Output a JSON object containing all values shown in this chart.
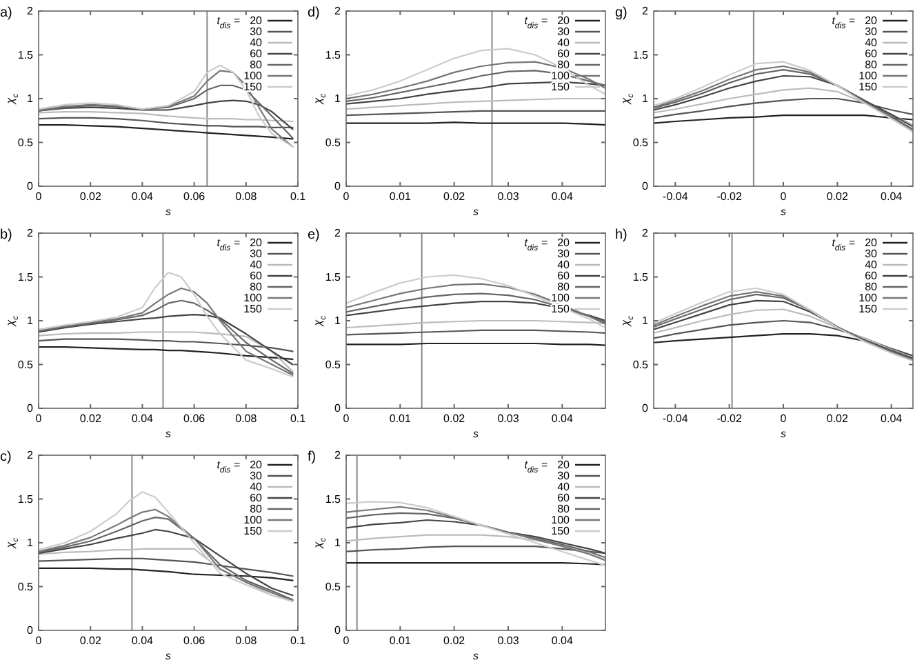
{
  "chart_data": [
    {
      "type": "line",
      "title": "a)",
      "xlabel": "s",
      "ylabel": "χ$_{c}$",
      "legend_title": "t$_{dis}$ =",
      "legend": "top right",
      "xlim": [
        0,
        0.1
      ],
      "xticks": [
        0,
        0.02,
        0.04,
        0.06,
        0.08,
        0.1
      ],
      "ylim": [
        0,
        2
      ],
      "yticks": [
        0,
        0.5,
        1,
        1.5,
        2
      ],
      "ref_lines": [
        {
          "axis": "x",
          "value": 0.065,
          "color": "#888888"
        }
      ],
      "x": [
        0,
        0.01,
        0.02,
        0.03,
        0.04,
        0.05,
        0.06,
        0.065,
        0.07,
        0.075,
        0.08,
        0.085,
        0.09,
        0.098
      ],
      "series": [
        {
          "name": "20",
          "color": "#222222",
          "values": [
            0.7,
            0.7,
            0.69,
            0.68,
            0.66,
            0.64,
            0.62,
            0.61,
            0.6,
            0.59,
            0.58,
            0.57,
            0.56,
            0.54
          ]
        },
        {
          "name": "30",
          "color": "#555555",
          "values": [
            0.77,
            0.78,
            0.78,
            0.77,
            0.75,
            0.72,
            0.7,
            0.69,
            0.69,
            0.68,
            0.68,
            0.68,
            0.67,
            0.67
          ]
        },
        {
          "name": "40",
          "color": "#bbbbbb",
          "values": [
            0.84,
            0.85,
            0.85,
            0.84,
            0.83,
            0.8,
            0.78,
            0.77,
            0.77,
            0.77,
            0.76,
            0.76,
            0.75,
            0.74
          ]
        },
        {
          "name": "60",
          "color": "#444444",
          "values": [
            0.86,
            0.89,
            0.9,
            0.89,
            0.87,
            0.87,
            0.92,
            0.95,
            0.97,
            0.98,
            0.97,
            0.93,
            0.85,
            0.65
          ]
        },
        {
          "name": "80",
          "color": "#666666",
          "values": [
            0.86,
            0.9,
            0.92,
            0.91,
            0.88,
            0.9,
            1.0,
            1.1,
            1.15,
            1.15,
            1.1,
            0.95,
            0.8,
            0.55
          ]
        },
        {
          "name": "100",
          "color": "#777777",
          "values": [
            0.87,
            0.91,
            0.93,
            0.92,
            0.88,
            0.91,
            1.03,
            1.2,
            1.32,
            1.3,
            1.15,
            0.9,
            0.65,
            0.45
          ]
        },
        {
          "name": "150",
          "color": "#cccccc",
          "values": [
            0.88,
            0.93,
            0.95,
            0.93,
            0.88,
            0.92,
            1.08,
            1.3,
            1.38,
            1.3,
            1.1,
            0.8,
            0.6,
            0.45
          ]
        }
      ]
    },
    {
      "type": "line",
      "title": "b)",
      "xlabel": "s",
      "ylabel": "χ$_{c}$",
      "legend_title": "t$_{dis}$ =",
      "legend": "top right",
      "xlim": [
        0,
        0.1
      ],
      "xticks": [
        0,
        0.02,
        0.04,
        0.06,
        0.08,
        0.1
      ],
      "ylim": [
        0,
        2
      ],
      "yticks": [
        0,
        0.5,
        1,
        1.5,
        2
      ],
      "ref_lines": [
        {
          "axis": "x",
          "value": 0.048,
          "color": "#888888"
        }
      ],
      "x": [
        0,
        0.01,
        0.02,
        0.03,
        0.04,
        0.045,
        0.05,
        0.055,
        0.06,
        0.065,
        0.07,
        0.08,
        0.09,
        0.098
      ],
      "series": [
        {
          "name": "20",
          "color": "#222222",
          "values": [
            0.7,
            0.7,
            0.69,
            0.68,
            0.67,
            0.67,
            0.66,
            0.66,
            0.65,
            0.64,
            0.63,
            0.6,
            0.58,
            0.56
          ]
        },
        {
          "name": "30",
          "color": "#555555",
          "values": [
            0.77,
            0.79,
            0.79,
            0.79,
            0.78,
            0.77,
            0.77,
            0.76,
            0.76,
            0.75,
            0.74,
            0.72,
            0.69,
            0.65
          ]
        },
        {
          "name": "40",
          "color": "#bbbbbb",
          "values": [
            0.83,
            0.85,
            0.86,
            0.86,
            0.87,
            0.87,
            0.87,
            0.87,
            0.87,
            0.86,
            0.85,
            0.82,
            0.65,
            0.42
          ]
        },
        {
          "name": "60",
          "color": "#444444",
          "values": [
            0.87,
            0.92,
            0.96,
            0.99,
            1.02,
            1.03,
            1.05,
            1.06,
            1.07,
            1.06,
            1.03,
            0.85,
            0.65,
            0.5
          ]
        },
        {
          "name": "80",
          "color": "#666666",
          "values": [
            0.88,
            0.93,
            0.97,
            1.01,
            1.06,
            1.12,
            1.2,
            1.23,
            1.2,
            1.12,
            1.02,
            0.75,
            0.55,
            0.4
          ]
        },
        {
          "name": "100",
          "color": "#777777",
          "values": [
            0.89,
            0.94,
            0.98,
            1.02,
            1.09,
            1.2,
            1.3,
            1.37,
            1.33,
            1.2,
            1.0,
            0.65,
            0.5,
            0.38
          ]
        },
        {
          "name": "150",
          "color": "#cccccc",
          "values": [
            0.9,
            0.95,
            0.99,
            1.04,
            1.15,
            1.38,
            1.55,
            1.5,
            1.3,
            1.05,
            0.85,
            0.55,
            0.45,
            0.36
          ]
        }
      ]
    },
    {
      "type": "line",
      "title": "c)",
      "xlabel": "s",
      "ylabel": "χ$_{c}$",
      "legend_title": "t$_{dis}$ =",
      "legend": "top right",
      "xlim": [
        0,
        0.1
      ],
      "xticks": [
        0,
        0.02,
        0.04,
        0.06,
        0.08,
        0.1
      ],
      "ylim": [
        0,
        2
      ],
      "yticks": [
        0,
        0.5,
        1,
        1.5,
        2
      ],
      "ref_lines": [
        {
          "axis": "x",
          "value": 0.036,
          "color": "#888888"
        }
      ],
      "x": [
        0,
        0.01,
        0.02,
        0.03,
        0.035,
        0.04,
        0.045,
        0.05,
        0.06,
        0.07,
        0.08,
        0.09,
        0.098
      ],
      "series": [
        {
          "name": "20",
          "color": "#222222",
          "values": [
            0.71,
            0.71,
            0.71,
            0.7,
            0.7,
            0.69,
            0.68,
            0.67,
            0.64,
            0.63,
            0.62,
            0.6,
            0.57
          ]
        },
        {
          "name": "30",
          "color": "#555555",
          "values": [
            0.79,
            0.8,
            0.81,
            0.82,
            0.82,
            0.82,
            0.81,
            0.8,
            0.78,
            0.74,
            0.7,
            0.66,
            0.62
          ]
        },
        {
          "name": "40",
          "color": "#bbbbbb",
          "values": [
            0.87,
            0.89,
            0.9,
            0.92,
            0.92,
            0.93,
            0.93,
            0.93,
            0.93,
            0.7,
            0.55,
            0.4,
            0.34
          ]
        },
        {
          "name": "60",
          "color": "#444444",
          "values": [
            0.88,
            0.93,
            0.98,
            1.05,
            1.08,
            1.11,
            1.15,
            1.13,
            1.05,
            0.85,
            0.65,
            0.48,
            0.4
          ]
        },
        {
          "name": "80",
          "color": "#666666",
          "values": [
            0.89,
            0.95,
            1.02,
            1.13,
            1.19,
            1.25,
            1.29,
            1.27,
            1.05,
            0.75,
            0.57,
            0.45,
            0.35
          ]
        },
        {
          "name": "100",
          "color": "#777777",
          "values": [
            0.9,
            0.97,
            1.06,
            1.2,
            1.28,
            1.35,
            1.38,
            1.3,
            1.05,
            0.7,
            0.55,
            0.43,
            0.34
          ]
        },
        {
          "name": "150",
          "color": "#cccccc",
          "values": [
            0.92,
            1.0,
            1.13,
            1.33,
            1.48,
            1.58,
            1.52,
            1.35,
            1.0,
            0.65,
            0.52,
            0.4,
            0.33
          ]
        }
      ]
    },
    {
      "type": "line",
      "title": "d)",
      "xlabel": "s",
      "ylabel": "χ$_{c}$",
      "legend_title": "t$_{dis}$ =",
      "legend": "top right",
      "xlim": [
        0,
        0.048
      ],
      "xticks": [
        0,
        0.01,
        0.02,
        0.03,
        0.04
      ],
      "ylim": [
        0,
        2
      ],
      "yticks": [
        0,
        0.5,
        1,
        1.5,
        2
      ],
      "ref_lines": [
        {
          "axis": "x",
          "value": 0.027,
          "color": "#888888"
        }
      ],
      "x": [
        0,
        0.005,
        0.01,
        0.015,
        0.02,
        0.025,
        0.03,
        0.035,
        0.04,
        0.045,
        0.048
      ],
      "series": [
        {
          "name": "20",
          "color": "#222222",
          "values": [
            0.72,
            0.72,
            0.72,
            0.72,
            0.73,
            0.72,
            0.72,
            0.72,
            0.72,
            0.71,
            0.7
          ]
        },
        {
          "name": "30",
          "color": "#555555",
          "values": [
            0.81,
            0.82,
            0.83,
            0.84,
            0.85,
            0.86,
            0.86,
            0.86,
            0.86,
            0.86,
            0.86
          ]
        },
        {
          "name": "40",
          "color": "#bbbbbb",
          "values": [
            0.88,
            0.9,
            0.92,
            0.94,
            0.96,
            0.97,
            0.98,
            0.99,
            1.0,
            1.0,
            1.0
          ]
        },
        {
          "name": "60",
          "color": "#444444",
          "values": [
            0.94,
            0.97,
            1.0,
            1.05,
            1.09,
            1.12,
            1.17,
            1.18,
            1.19,
            1.17,
            1.15
          ]
        },
        {
          "name": "80",
          "color": "#666666",
          "values": [
            0.97,
            1.01,
            1.07,
            1.13,
            1.19,
            1.26,
            1.31,
            1.32,
            1.28,
            1.2,
            1.15
          ]
        },
        {
          "name": "100",
          "color": "#777777",
          "values": [
            1.0,
            1.05,
            1.12,
            1.2,
            1.3,
            1.37,
            1.41,
            1.42,
            1.35,
            1.22,
            1.12
          ]
        },
        {
          "name": "150",
          "color": "#cccccc",
          "values": [
            1.03,
            1.1,
            1.2,
            1.33,
            1.46,
            1.55,
            1.57,
            1.5,
            1.35,
            1.15,
            1.05
          ]
        }
      ]
    },
    {
      "type": "line",
      "title": "e)",
      "xlabel": "s",
      "ylabel": "χ$_{c}$",
      "legend_title": "t$_{dis}$ =",
      "legend": "top right",
      "xlim": [
        0,
        0.048
      ],
      "xticks": [
        0,
        0.01,
        0.02,
        0.03,
        0.04
      ],
      "ylim": [
        0,
        2
      ],
      "yticks": [
        0,
        0.5,
        1,
        1.5,
        2
      ],
      "ref_lines": [
        {
          "axis": "x",
          "value": 0.014,
          "color": "#888888"
        }
      ],
      "x": [
        0,
        0.005,
        0.01,
        0.015,
        0.02,
        0.025,
        0.03,
        0.035,
        0.04,
        0.045,
        0.048
      ],
      "series": [
        {
          "name": "20",
          "color": "#222222",
          "values": [
            0.73,
            0.73,
            0.73,
            0.74,
            0.74,
            0.74,
            0.74,
            0.74,
            0.73,
            0.73,
            0.72
          ]
        },
        {
          "name": "30",
          "color": "#555555",
          "values": [
            0.84,
            0.85,
            0.86,
            0.87,
            0.88,
            0.89,
            0.89,
            0.89,
            0.88,
            0.87,
            0.86
          ]
        },
        {
          "name": "40",
          "color": "#bbbbbb",
          "values": [
            0.92,
            0.94,
            0.96,
            0.98,
            0.99,
            1.0,
            1.0,
            1.0,
            0.99,
            0.98,
            0.97
          ]
        },
        {
          "name": "60",
          "color": "#444444",
          "values": [
            1.06,
            1.1,
            1.14,
            1.17,
            1.2,
            1.22,
            1.22,
            1.2,
            1.14,
            1.06,
            1.0
          ]
        },
        {
          "name": "80",
          "color": "#666666",
          "values": [
            1.1,
            1.16,
            1.22,
            1.27,
            1.3,
            1.31,
            1.29,
            1.24,
            1.15,
            1.05,
            0.98
          ]
        },
        {
          "name": "100",
          "color": "#777777",
          "values": [
            1.15,
            1.23,
            1.31,
            1.37,
            1.41,
            1.42,
            1.38,
            1.3,
            1.18,
            1.05,
            0.96
          ]
        },
        {
          "name": "150",
          "color": "#cccccc",
          "values": [
            1.2,
            1.32,
            1.43,
            1.5,
            1.52,
            1.48,
            1.4,
            1.28,
            1.15,
            1.02,
            0.92
          ]
        }
      ]
    },
    {
      "type": "line",
      "title": "f)",
      "xlabel": "s",
      "ylabel": "χ$_{c}$",
      "legend_title": "t$_{dis}$ =",
      "legend": "top right",
      "xlim": [
        0,
        0.048
      ],
      "xticks": [
        0,
        0.01,
        0.02,
        0.03,
        0.04
      ],
      "ylim": [
        0,
        2
      ],
      "yticks": [
        0,
        0.5,
        1,
        1.5,
        2
      ],
      "ref_lines": [
        {
          "axis": "x",
          "value": 0.002,
          "color": "#888888"
        }
      ],
      "x": [
        0,
        0.005,
        0.01,
        0.015,
        0.02,
        0.025,
        0.03,
        0.035,
        0.04,
        0.045,
        0.048
      ],
      "series": [
        {
          "name": "20",
          "color": "#222222",
          "values": [
            0.77,
            0.77,
            0.77,
            0.77,
            0.77,
            0.77,
            0.77,
            0.77,
            0.77,
            0.76,
            0.75
          ]
        },
        {
          "name": "30",
          "color": "#555555",
          "values": [
            0.9,
            0.92,
            0.93,
            0.95,
            0.96,
            0.96,
            0.96,
            0.96,
            0.93,
            0.9,
            0.88
          ]
        },
        {
          "name": "40",
          "color": "#bbbbbb",
          "values": [
            1.02,
            1.05,
            1.07,
            1.09,
            1.09,
            1.09,
            1.07,
            1.03,
            0.97,
            0.88,
            0.8
          ]
        },
        {
          "name": "60",
          "color": "#444444",
          "values": [
            1.17,
            1.21,
            1.23,
            1.26,
            1.24,
            1.2,
            1.12,
            1.07,
            1.0,
            0.93,
            0.88
          ]
        },
        {
          "name": "80",
          "color": "#666666",
          "values": [
            1.28,
            1.32,
            1.34,
            1.33,
            1.28,
            1.2,
            1.12,
            1.05,
            0.98,
            0.9,
            0.83
          ]
        },
        {
          "name": "100",
          "color": "#777777",
          "values": [
            1.35,
            1.38,
            1.41,
            1.37,
            1.29,
            1.2,
            1.12,
            1.04,
            0.96,
            0.87,
            0.8
          ]
        },
        {
          "name": "150",
          "color": "#cccccc",
          "values": [
            1.45,
            1.47,
            1.46,
            1.4,
            1.3,
            1.2,
            1.1,
            1.0,
            0.9,
            0.8,
            0.74
          ]
        }
      ]
    },
    {
      "type": "line",
      "title": "g)",
      "xlabel": "s",
      "ylabel": "χ$_{c}$",
      "legend_title": "t$_{dis}$ =",
      "legend": "top right",
      "xlim": [
        -0.048,
        0.048
      ],
      "xticks": [
        -0.04,
        -0.02,
        0,
        0.02,
        0.04
      ],
      "ylim": [
        0,
        2
      ],
      "yticks": [
        0,
        0.5,
        1,
        1.5,
        2
      ],
      "ref_lines": [
        {
          "axis": "x",
          "value": -0.011,
          "color": "#888888"
        }
      ],
      "x": [
        -0.048,
        -0.04,
        -0.03,
        -0.02,
        -0.01,
        0,
        0.01,
        0.02,
        0.03,
        0.04,
        0.048
      ],
      "series": [
        {
          "name": "20",
          "color": "#222222",
          "values": [
            0.72,
            0.74,
            0.76,
            0.78,
            0.79,
            0.81,
            0.81,
            0.81,
            0.81,
            0.78,
            0.76
          ]
        },
        {
          "name": "30",
          "color": "#555555",
          "values": [
            0.78,
            0.82,
            0.86,
            0.91,
            0.95,
            0.98,
            1.0,
            1.0,
            0.95,
            0.87,
            0.82
          ]
        },
        {
          "name": "40",
          "color": "#bbbbbb",
          "values": [
            0.84,
            0.88,
            0.94,
            1.0,
            1.05,
            1.1,
            1.12,
            1.08,
            0.95,
            0.82,
            0.7
          ]
        },
        {
          "name": "60",
          "color": "#444444",
          "values": [
            0.87,
            0.93,
            1.02,
            1.12,
            1.2,
            1.26,
            1.25,
            1.15,
            0.98,
            0.82,
            0.68
          ]
        },
        {
          "name": "80",
          "color": "#666666",
          "values": [
            0.89,
            0.96,
            1.06,
            1.18,
            1.28,
            1.33,
            1.28,
            1.15,
            0.97,
            0.8,
            0.65
          ]
        },
        {
          "name": "100",
          "color": "#777777",
          "values": [
            0.9,
            0.98,
            1.09,
            1.22,
            1.33,
            1.37,
            1.3,
            1.15,
            0.96,
            0.78,
            0.64
          ]
        },
        {
          "name": "150",
          "color": "#cccccc",
          "values": [
            0.92,
            1.0,
            1.13,
            1.27,
            1.4,
            1.42,
            1.32,
            1.15,
            0.95,
            0.77,
            0.62
          ]
        }
      ]
    },
    {
      "type": "line",
      "title": "h)",
      "xlabel": "s",
      "ylabel": "χ$_{c}$",
      "legend_title": "t$_{dis}$ =",
      "legend": "top right",
      "xlim": [
        -0.048,
        0.048
      ],
      "xticks": [
        -0.04,
        -0.02,
        0,
        0.02,
        0.04
      ],
      "ylim": [
        0,
        2
      ],
      "yticks": [
        0,
        0.5,
        1,
        1.5,
        2
      ],
      "ref_lines": [
        {
          "axis": "x",
          "value": -0.019,
          "color": "#888888"
        }
      ],
      "x": [
        -0.048,
        -0.04,
        -0.03,
        -0.02,
        -0.01,
        0,
        0.01,
        0.02,
        0.03,
        0.04,
        0.048
      ],
      "series": [
        {
          "name": "20",
          "color": "#222222",
          "values": [
            0.75,
            0.77,
            0.79,
            0.81,
            0.83,
            0.85,
            0.85,
            0.83,
            0.77,
            0.68,
            0.6
          ]
        },
        {
          "name": "30",
          "color": "#555555",
          "values": [
            0.8,
            0.85,
            0.9,
            0.95,
            0.98,
            1.0,
            0.98,
            0.9,
            0.8,
            0.68,
            0.6
          ]
        },
        {
          "name": "40",
          "color": "#bbbbbb",
          "values": [
            0.86,
            0.92,
            1.0,
            1.07,
            1.12,
            1.13,
            1.05,
            0.92,
            0.8,
            0.67,
            0.58
          ]
        },
        {
          "name": "60",
          "color": "#444444",
          "values": [
            0.9,
            0.98,
            1.08,
            1.18,
            1.23,
            1.22,
            1.1,
            0.93,
            0.78,
            0.66,
            0.57
          ]
        },
        {
          "name": "80",
          "color": "#666666",
          "values": [
            0.93,
            1.02,
            1.13,
            1.24,
            1.3,
            1.26,
            1.12,
            0.93,
            0.77,
            0.65,
            0.56
          ]
        },
        {
          "name": "100",
          "color": "#777777",
          "values": [
            0.95,
            1.05,
            1.17,
            1.28,
            1.33,
            1.28,
            1.12,
            0.92,
            0.77,
            0.64,
            0.55
          ]
        },
        {
          "name": "150",
          "color": "#cccccc",
          "values": [
            0.97,
            1.08,
            1.21,
            1.33,
            1.37,
            1.3,
            1.12,
            0.92,
            0.76,
            0.63,
            0.54
          ]
        }
      ]
    }
  ]
}
